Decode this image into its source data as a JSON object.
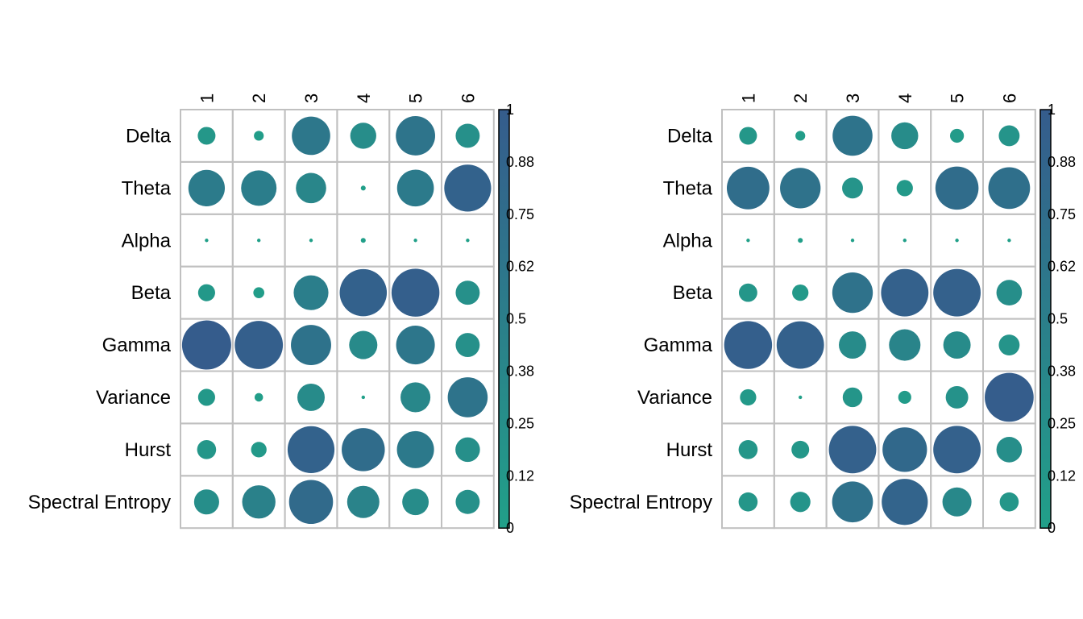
{
  "chart_data": [
    {
      "type": "heatmap",
      "style": "circle-correlogram",
      "rows": [
        "Delta",
        "Theta",
        "Alpha",
        "Beta",
        "Gamma",
        "Variance",
        "Hurst",
        "Spectral Entropy"
      ],
      "columns": [
        "1",
        "2",
        "3",
        "4",
        "5",
        "6"
      ],
      "values": [
        [
          0.13,
          0.04,
          0.61,
          0.28,
          0.64,
          0.24
        ],
        [
          0.55,
          0.52,
          0.38,
          0.01,
          0.56,
          0.91
        ],
        [
          0.0,
          0.0,
          0.0,
          0.01,
          0.0,
          0.0
        ],
        [
          0.12,
          0.05,
          0.5,
          0.92,
          0.95,
          0.24
        ],
        [
          1.0,
          0.96,
          0.67,
          0.33,
          0.62,
          0.24
        ],
        [
          0.12,
          0.03,
          0.31,
          0.0,
          0.37,
          0.66
        ],
        [
          0.15,
          0.1,
          0.91,
          0.77,
          0.57,
          0.25
        ],
        [
          0.26,
          0.46,
          0.8,
          0.43,
          0.29,
          0.24
        ]
      ],
      "colorbar": {
        "min": 0,
        "max": 1,
        "ticks": [
          "0",
          "0.12",
          "0.25",
          "0.38",
          "0.5",
          "0.62",
          "0.75",
          "0.88",
          "1"
        ]
      },
      "colors": {
        "low": "#21a089",
        "high": "#355c8c",
        "grid": "#c0c0c0"
      }
    },
    {
      "type": "heatmap",
      "style": "circle-correlogram",
      "rows": [
        "Delta",
        "Theta",
        "Alpha",
        "Beta",
        "Gamma",
        "Variance",
        "Hurst",
        "Spectral Entropy"
      ],
      "columns": [
        "1",
        "2",
        "3",
        "4",
        "5",
        "6"
      ],
      "values": [
        [
          0.13,
          0.04,
          0.66,
          0.3,
          0.08,
          0.18
        ],
        [
          0.75,
          0.68,
          0.18,
          0.11,
          0.77,
          0.72
        ],
        [
          0.0,
          0.01,
          0.0,
          0.0,
          0.0,
          0.0
        ],
        [
          0.14,
          0.11,
          0.68,
          0.93,
          0.93,
          0.27
        ],
        [
          0.95,
          0.93,
          0.31,
          0.41,
          0.31,
          0.18
        ],
        [
          0.11,
          0.0,
          0.16,
          0.07,
          0.21,
          0.99
        ],
        [
          0.15,
          0.13,
          0.93,
          0.82,
          0.93,
          0.27
        ],
        [
          0.15,
          0.17,
          0.69,
          0.88,
          0.35,
          0.15
        ]
      ],
      "colorbar": {
        "min": 0,
        "max": 1,
        "ticks": [
          "0",
          "0.12",
          "0.25",
          "0.38",
          "0.5",
          "0.62",
          "0.75",
          "0.88",
          "1"
        ]
      },
      "colors": {
        "low": "#21a089",
        "high": "#355c8c",
        "grid": "#c0c0c0"
      }
    }
  ]
}
